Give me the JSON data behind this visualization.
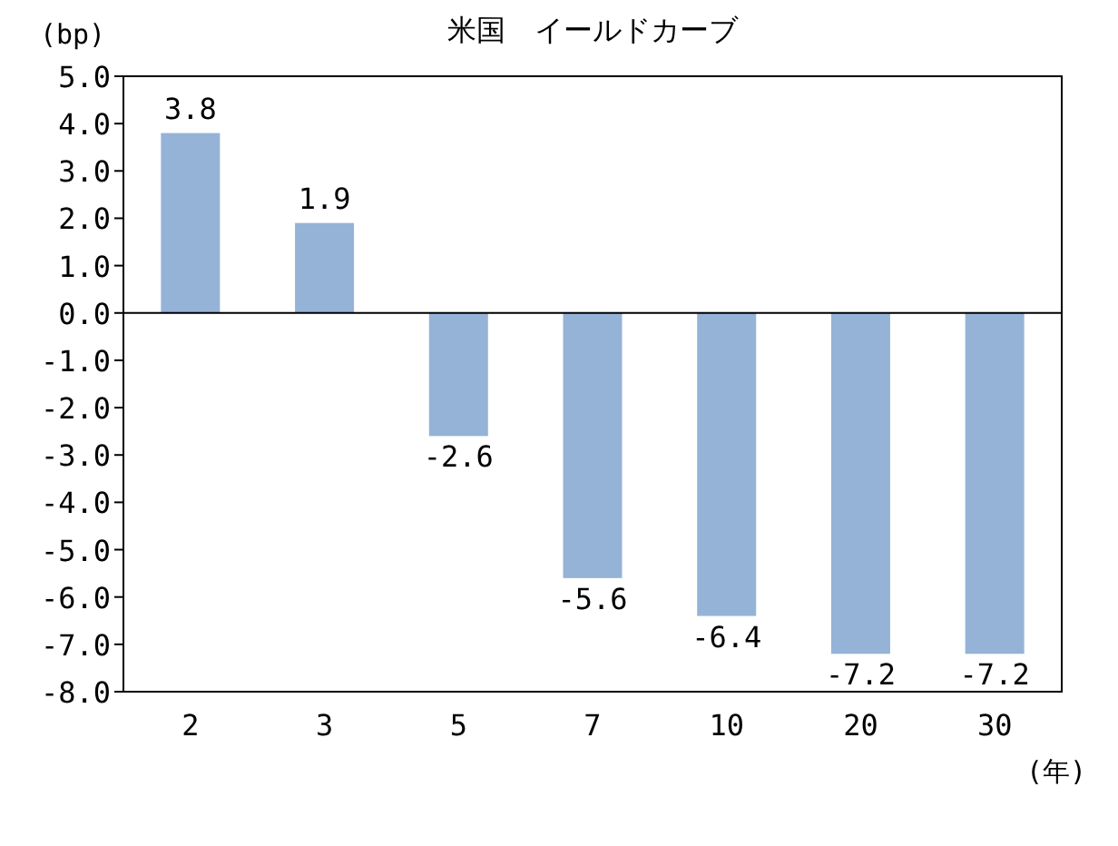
{
  "chart_data": {
    "type": "bar",
    "title": "米国　イールドカーブ",
    "ylabel": "(bp)",
    "xlabel": "(年)",
    "categories": [
      "2",
      "3",
      "5",
      "7",
      "10",
      "20",
      "30"
    ],
    "values": [
      3.8,
      1.9,
      -2.6,
      -5.6,
      -6.4,
      -7.2,
      -7.2
    ],
    "color": "#95b3d7",
    "ylim": [
      -8,
      5
    ],
    "yticks": [
      {
        "value": 5,
        "label": "5.0"
      },
      {
        "value": 4,
        "label": "4.0"
      },
      {
        "value": 3,
        "label": "3.0"
      },
      {
        "value": 2,
        "label": "2.0"
      },
      {
        "value": 1,
        "label": "1.0"
      },
      {
        "value": 0,
        "label": "0.0"
      },
      {
        "value": -1,
        "label": "-1.0"
      },
      {
        "value": -2,
        "label": "-2.0"
      },
      {
        "value": -3,
        "label": "-3.0"
      },
      {
        "value": -4,
        "label": "-4.0"
      },
      {
        "value": -5,
        "label": "-5.0"
      },
      {
        "value": -6,
        "label": "-6.0"
      },
      {
        "value": -7,
        "label": "-7.0"
      },
      {
        "value": -8,
        "label": "-8.0"
      }
    ],
    "data_labels": true
  }
}
